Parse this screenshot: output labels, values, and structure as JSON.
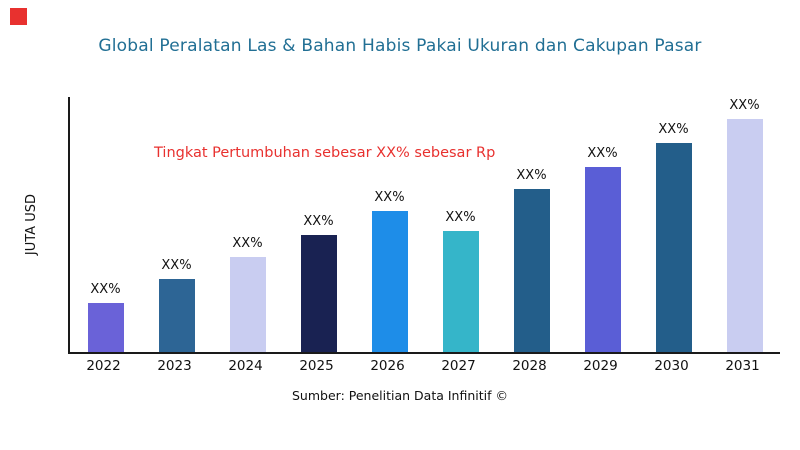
{
  "header": {
    "title": "Global Peralatan Las & Bahan Habis Pakai Ukuran dan Cakupan Pasar",
    "title_color": "#216f94"
  },
  "annotation": {
    "text": "Tingkat Pertumbuhan sebesar XX% sebesar Rp",
    "color": "#e8312f"
  },
  "footer": {
    "source": "Sumber: Penelitian Data Infinitif ©"
  },
  "accent": {
    "red": "#e8312f",
    "axis": "#1a1a1a"
  },
  "chart_data": {
    "type": "bar",
    "title": "Global Peralatan Las & Bahan Habis Pakai Ukuran dan Cakupan Pasar",
    "xlabel": "",
    "ylabel": "JUTA USD",
    "categories": [
      "2022",
      "2023",
      "2024",
      "2025",
      "2026",
      "2027",
      "2028",
      "2029",
      "2030",
      "2031"
    ],
    "values": [
      20,
      30,
      39,
      48,
      58,
      50,
      67,
      76,
      86,
      96
    ],
    "values_note": "bars are unlabeled placeholders; heights estimated in relative units",
    "bar_labels": [
      "XX%",
      "XX%",
      "XX%",
      "XX%",
      "XX%",
      "XX%",
      "XX%",
      "XX%",
      "XX%",
      "XX%"
    ],
    "bar_colors": [
      "#6a62d8",
      "#2d6595",
      "#c9cdf1",
      "#192252",
      "#1e8de8",
      "#35b5c9",
      "#235e8a",
      "#5a5ed6",
      "#235e8a",
      "#c9cdf1"
    ],
    "ylim": [
      0,
      105
    ],
    "y_tick_labels": [],
    "grid": false,
    "legend": false,
    "annotation": "Tingkat Pertumbuhan sebesar XX% sebesar Rp",
    "source": "Sumber: Penelitian Data Infinitif ©"
  }
}
